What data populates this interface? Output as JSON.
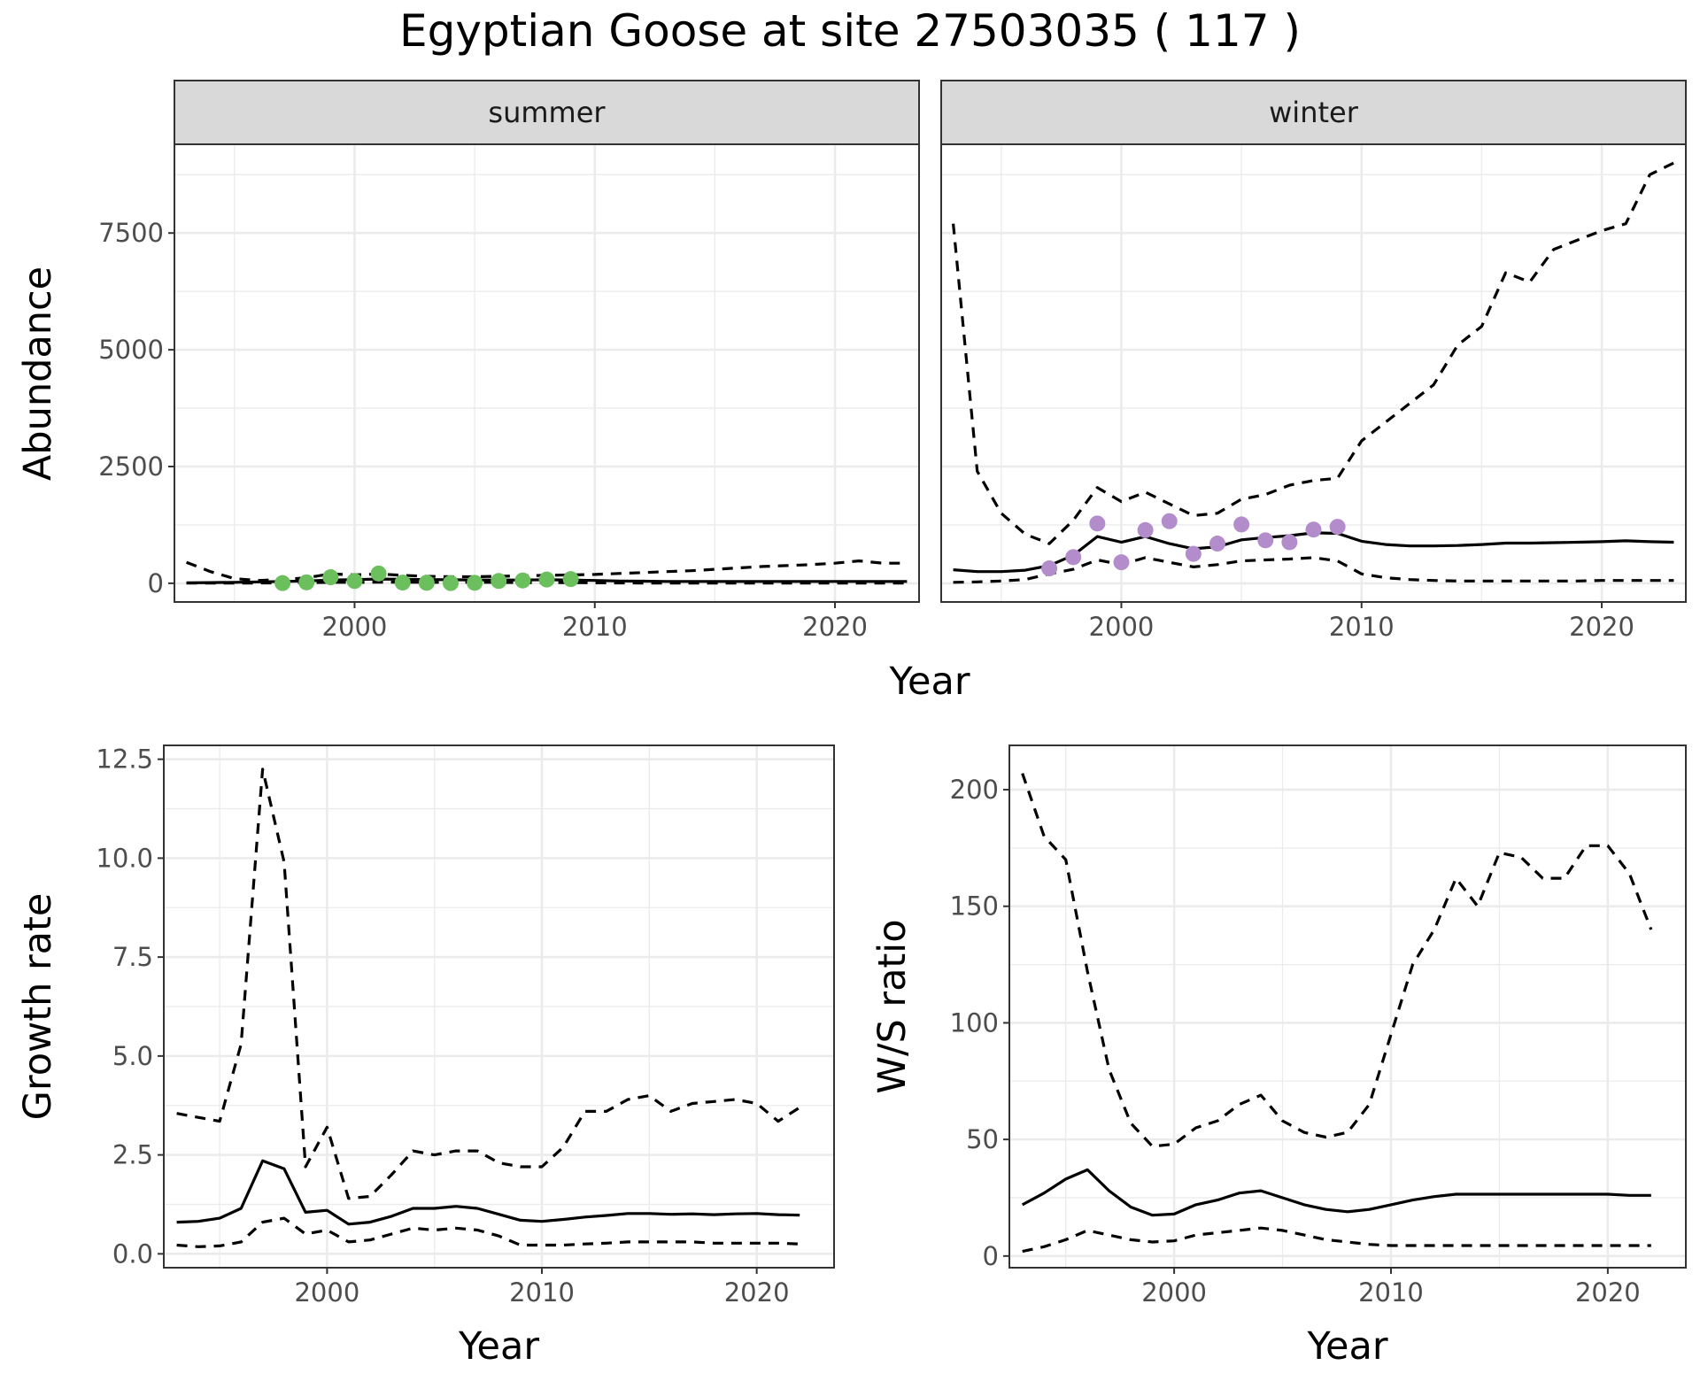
{
  "title": "Egyptian Goose at site 27503035 ( 117 )",
  "colors": {
    "summer_points": "#6cbf5d",
    "winter_points": "#b38ccc",
    "line": "#000000",
    "grid": "#ebebeb",
    "strip": "#d9d9d9",
    "panel_border": "#333333"
  },
  "chart_data": [
    {
      "type": "line",
      "panel": "abundance",
      "xlabel": "Year",
      "ylabel": "Abundance",
      "xlim": [
        1992.5,
        2023.5
      ],
      "ylim": [
        -400,
        9400
      ],
      "xticks": [
        2000,
        2010,
        2020
      ],
      "yticks": [
        0,
        2500,
        5000,
        7500
      ],
      "ytick_labels": [
        "0",
        "2500",
        "5000",
        "7500"
      ],
      "grid": true,
      "facets": [
        {
          "name": "summer",
          "x": [
            1993,
            1994,
            1995,
            1996,
            1997,
            1998,
            1999,
            2000,
            2001,
            2002,
            2003,
            2004,
            2005,
            2006,
            2007,
            2008,
            2009,
            2010,
            2011,
            2012,
            2013,
            2014,
            2015,
            2016,
            2017,
            2018,
            2019,
            2020,
            2021,
            2022,
            2023
          ],
          "estimate": [
            10,
            15,
            20,
            30,
            40,
            50,
            70,
            80,
            90,
            85,
            80,
            75,
            70,
            70,
            70,
            75,
            70,
            60,
            50,
            45,
            40,
            40,
            40,
            40,
            40,
            40,
            40,
            40,
            40,
            40,
            40
          ],
          "lower": [
            5,
            5,
            5,
            5,
            10,
            15,
            20,
            20,
            25,
            25,
            20,
            20,
            20,
            20,
            15,
            15,
            15,
            10,
            8,
            6,
            5,
            5,
            5,
            5,
            4,
            4,
            4,
            4,
            3,
            3,
            3
          ],
          "upper": [
            450,
            250,
            100,
            60,
            80,
            120,
            200,
            180,
            200,
            170,
            150,
            140,
            140,
            150,
            160,
            170,
            180,
            190,
            210,
            230,
            250,
            270,
            300,
            330,
            360,
            380,
            400,
            430,
            480,
            430,
            430
          ],
          "observed": {
            "x": [
              1997,
              1998,
              1999,
              2000,
              2001,
              2002,
              2003,
              2004,
              2005,
              2006,
              2007,
              2008,
              2009
            ],
            "y": [
              5,
              20,
              130,
              50,
              210,
              15,
              10,
              5,
              10,
              50,
              60,
              80,
              90
            ]
          }
        },
        {
          "name": "winter",
          "x": [
            1993,
            1994,
            1995,
            1996,
            1997,
            1998,
            1999,
            2000,
            2001,
            2002,
            2003,
            2004,
            2005,
            2006,
            2007,
            2008,
            2009,
            2010,
            2011,
            2012,
            2013,
            2014,
            2015,
            2016,
            2017,
            2018,
            2019,
            2020,
            2021,
            2022,
            2023
          ],
          "estimate": [
            290,
            250,
            250,
            280,
            380,
            600,
            1000,
            880,
            1000,
            850,
            740,
            780,
            930,
            980,
            1020,
            1080,
            1070,
            900,
            830,
            800,
            800,
            810,
            830,
            860,
            860,
            870,
            880,
            890,
            910,
            890,
            880
          ],
          "lower": [
            20,
            30,
            50,
            80,
            200,
            300,
            500,
            400,
            550,
            450,
            350,
            400,
            480,
            500,
            520,
            550,
            480,
            200,
            120,
            80,
            60,
            50,
            50,
            50,
            50,
            50,
            50,
            60,
            60,
            60,
            60
          ],
          "upper": [
            7700,
            2400,
            1500,
            1050,
            850,
            1350,
            2050,
            1750,
            1950,
            1700,
            1450,
            1500,
            1800,
            1900,
            2100,
            2200,
            2250,
            3050,
            3450,
            3850,
            4250,
            5100,
            5500,
            6650,
            6450,
            7150,
            7350,
            7550,
            7700,
            8750,
            9000
          ],
          "observed": {
            "x": [
              1997,
              1998,
              1999,
              2000,
              2001,
              2002,
              2003,
              2004,
              2005,
              2006,
              2007,
              2008,
              2009
            ],
            "y": [
              320,
              560,
              1280,
              450,
              1140,
              1330,
              630,
              850,
              1260,
              920,
              880,
              1150,
              1210
            ]
          }
        }
      ]
    },
    {
      "type": "line",
      "panel": "growth",
      "xlabel": "Year",
      "ylabel": "Growth rate",
      "xlim": [
        1992.4,
        2023.6
      ],
      "ylim": [
        -0.35,
        12.85
      ],
      "xticks": [
        2000,
        2010,
        2020
      ],
      "yticks": [
        0,
        2.5,
        5,
        7.5,
        10,
        12.5
      ],
      "ytick_labels": [
        "0.0",
        "2.5",
        "5.0",
        "7.5",
        "10.0",
        "12.5"
      ],
      "grid": true,
      "x": [
        1993,
        1994,
        1995,
        1996,
        1997,
        1998,
        1999,
        2000,
        2001,
        2002,
        2003,
        2004,
        2005,
        2006,
        2007,
        2008,
        2009,
        2010,
        2011,
        2012,
        2013,
        2014,
        2015,
        2016,
        2017,
        2018,
        2019,
        2020,
        2021,
        2022
      ],
      "estimate": [
        0.8,
        0.82,
        0.9,
        1.15,
        2.35,
        2.15,
        1.05,
        1.1,
        0.75,
        0.8,
        0.95,
        1.15,
        1.15,
        1.2,
        1.15,
        1.0,
        0.85,
        0.82,
        0.87,
        0.93,
        0.97,
        1.02,
        1.02,
        1.0,
        1.01,
        0.99,
        1.01,
        1.02,
        0.99,
        0.98
      ],
      "lower": [
        0.22,
        0.18,
        0.2,
        0.3,
        0.8,
        0.9,
        0.5,
        0.6,
        0.3,
        0.35,
        0.5,
        0.65,
        0.6,
        0.65,
        0.6,
        0.45,
        0.22,
        0.22,
        0.22,
        0.25,
        0.27,
        0.3,
        0.3,
        0.3,
        0.3,
        0.27,
        0.27,
        0.27,
        0.27,
        0.25
      ],
      "upper": [
        3.55,
        3.45,
        3.35,
        5.3,
        12.25,
        9.9,
        2.2,
        3.2,
        1.4,
        1.45,
        2.0,
        2.6,
        2.5,
        2.6,
        2.6,
        2.3,
        2.2,
        2.2,
        2.7,
        3.6,
        3.6,
        3.9,
        4.0,
        3.6,
        3.8,
        3.85,
        3.9,
        3.8,
        3.35,
        3.7
      ]
    },
    {
      "type": "line",
      "panel": "ratio",
      "xlabel": "Year",
      "ylabel": "W/S ratio",
      "xlim": [
        1992.4,
        2023.6
      ],
      "ylim": [
        -5,
        219
      ],
      "xticks": [
        2000,
        2010,
        2020
      ],
      "yticks": [
        0,
        50,
        100,
        150,
        200
      ],
      "ytick_labels": [
        "0",
        "50",
        "100",
        "150",
        "200"
      ],
      "grid": true,
      "x": [
        1993,
        1994,
        1995,
        1996,
        1997,
        1998,
        1999,
        2000,
        2001,
        2002,
        2003,
        2004,
        2005,
        2006,
        2007,
        2008,
        2009,
        2010,
        2011,
        2012,
        2013,
        2014,
        2015,
        2016,
        2017,
        2018,
        2019,
        2020,
        2021,
        2022
      ],
      "estimate": [
        22,
        27,
        33,
        37,
        28,
        21,
        17.5,
        18,
        22,
        24,
        27,
        28,
        25,
        22,
        20,
        19,
        20,
        22,
        24,
        25.5,
        26.5,
        26.5,
        26.5,
        26.5,
        26.5,
        26.5,
        26.5,
        26.5,
        26,
        26
      ],
      "lower": [
        2,
        4,
        7,
        11,
        9,
        7,
        6,
        6.5,
        9,
        10,
        11,
        12,
        11,
        9,
        7,
        6,
        5,
        4.5,
        4.5,
        4.5,
        4.5,
        4.5,
        4.5,
        4.5,
        4.5,
        4.5,
        4.5,
        4.5,
        4.5,
        4.5
      ],
      "upper": [
        207,
        180,
        170,
        122,
        80,
        57,
        47,
        48,
        55,
        58,
        65,
        69,
        58,
        53,
        51,
        53,
        65,
        95,
        125,
        140,
        162,
        150,
        173,
        171,
        162,
        162,
        176,
        176,
        164,
        140
      ]
    }
  ]
}
